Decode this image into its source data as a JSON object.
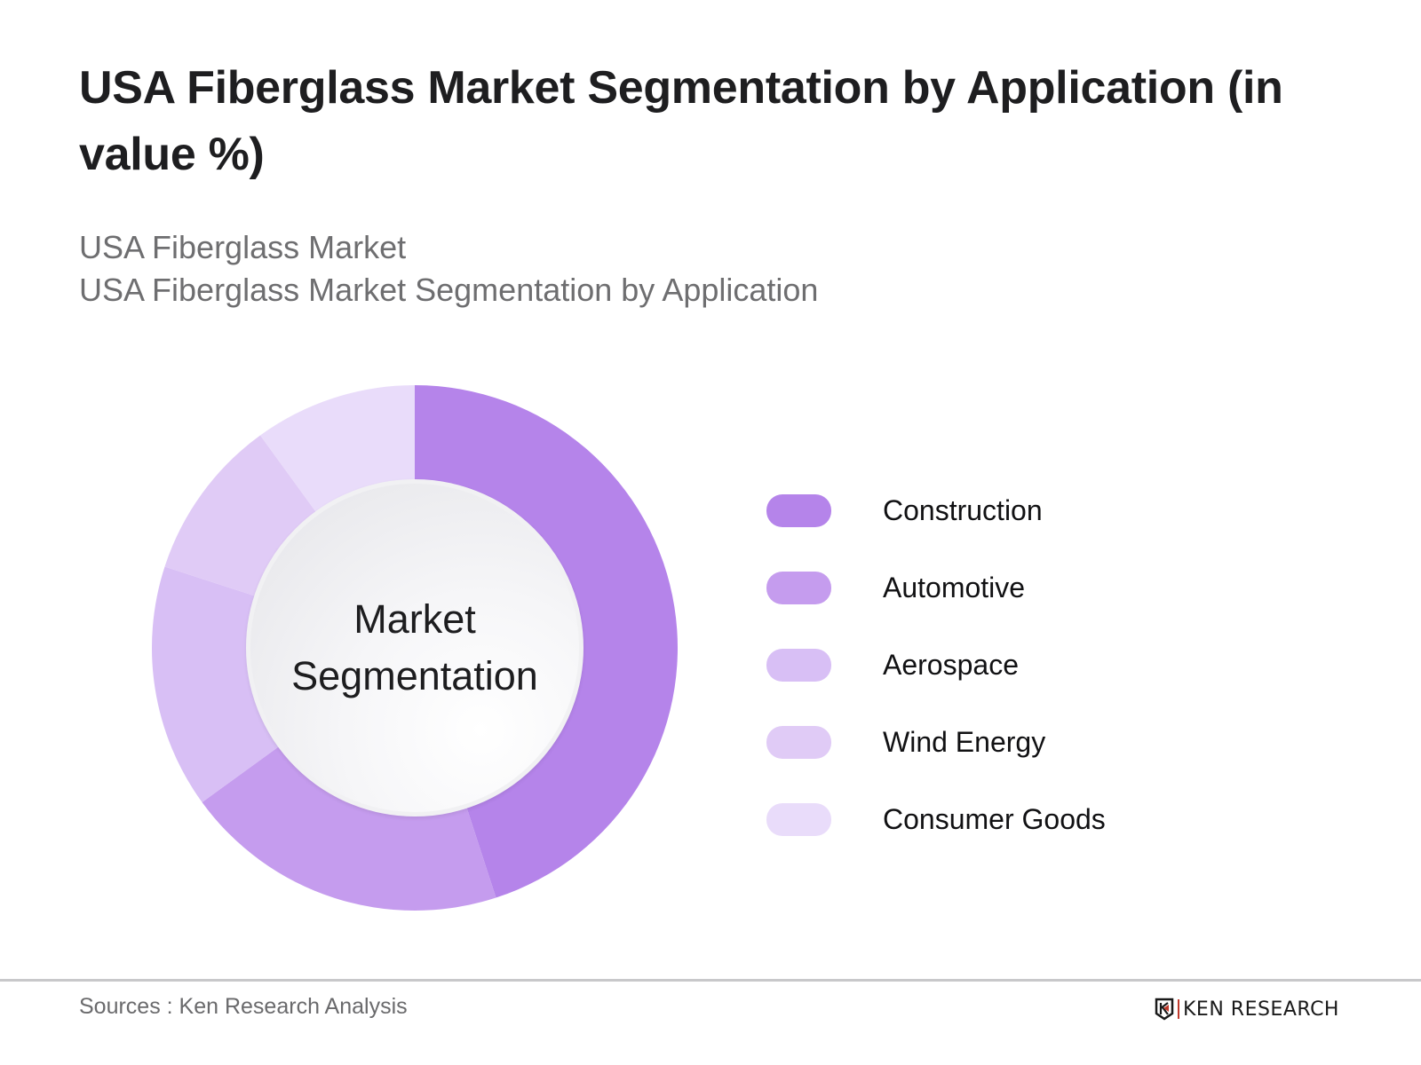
{
  "header": {
    "title": "USA Fiberglass Market Segmentation by Application (in value %)",
    "subtitle_line1": "USA Fiberglass Market",
    "subtitle_line2": "USA Fiberglass Market Segmentation by Application"
  },
  "donut": {
    "center_line1": "Market",
    "center_line2": "Segmentation"
  },
  "legend": [
    {
      "label": "Construction",
      "color": "#b584ea"
    },
    {
      "label": "Automotive",
      "color": "#c59cee"
    },
    {
      "label": "Aerospace",
      "color": "#d8bff5"
    },
    {
      "label": "Wind Energy",
      "color": "#e0cbf6"
    },
    {
      "label": "Consumer Goods",
      "color": "#e9dcfa"
    }
  ],
  "footer": {
    "sources": "Sources : Ken Research Analysis",
    "logo_text": "KEN RESEARCH"
  },
  "chart_data": {
    "type": "pie",
    "subtype": "donut",
    "title": "USA Fiberglass Market Segmentation by Application (in value %)",
    "subtitle": "USA Fiberglass Market / USA Fiberglass Market Segmentation by Application",
    "center_label": "Market Segmentation",
    "categories": [
      "Construction",
      "Automotive",
      "Aerospace",
      "Wind Energy",
      "Consumer Goods"
    ],
    "values": [
      45,
      20,
      15,
      10,
      10
    ],
    "unit": "%",
    "colors": [
      "#b584ea",
      "#c59cee",
      "#d8bff5",
      "#e0cbf6",
      "#e9dcfa"
    ],
    "start_angle": "12 o'clock, clockwise",
    "legend_position": "right",
    "data_labels_shown": false
  }
}
